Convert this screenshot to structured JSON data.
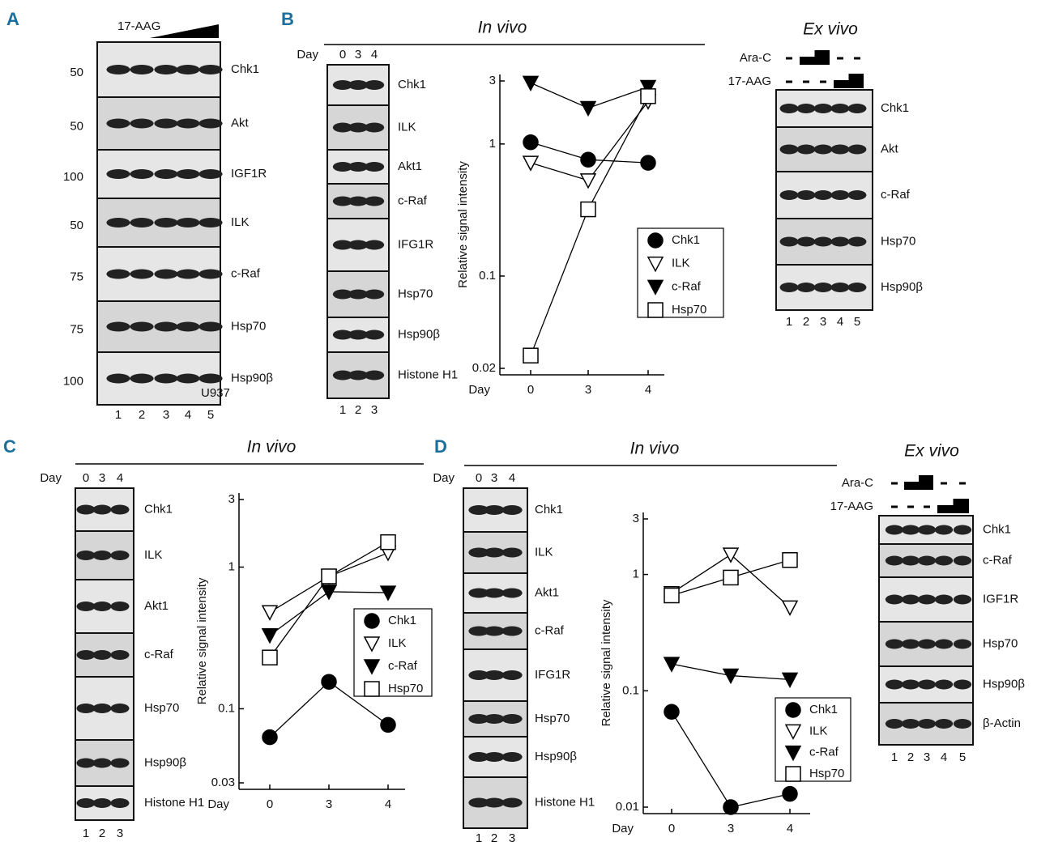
{
  "panels": {
    "A": {
      "label": "A",
      "treatment": "17-AAG",
      "cell_line": "U937",
      "rows": [
        {
          "name": "Chk1",
          "marker": "50"
        },
        {
          "name": "Akt",
          "marker": "50"
        },
        {
          "name": "IGF1R",
          "marker": "100"
        },
        {
          "name": "ILK",
          "marker": "50"
        },
        {
          "name": "c-Raf",
          "marker": "75"
        },
        {
          "name": "Hsp70",
          "marker": "75"
        },
        {
          "name": "Hsp90β",
          "marker": "100"
        }
      ],
      "lanes": [
        "1",
        "2",
        "3",
        "4",
        "5"
      ]
    },
    "B": {
      "label": "B",
      "title": "In vivo",
      "day_label": "Day",
      "days": [
        "0",
        "3",
        "4"
      ],
      "rows": [
        "Chk1",
        "ILK",
        "Akt1",
        "c-Raf",
        "IFG1R",
        "Hsp70",
        "Hsp90β",
        "Histone H1"
      ],
      "lanes": [
        "1",
        "2",
        "3"
      ]
    },
    "B_ex": {
      "title": "Ex vivo",
      "treatments": [
        "Ara-C",
        "17-AAG"
      ],
      "rows": [
        "Chk1",
        "Akt",
        "c-Raf",
        "Hsp70",
        "Hsp90β"
      ],
      "lanes": [
        "1",
        "2",
        "3",
        "4",
        "5"
      ]
    },
    "C": {
      "label": "C",
      "title": "In vivo",
      "day_label": "Day",
      "days": [
        "0",
        "3",
        "4"
      ],
      "rows": [
        "Chk1",
        "ILK",
        "Akt1",
        "c-Raf",
        "Hsp70",
        "Hsp90β",
        "Histone H1"
      ],
      "lanes": [
        "1",
        "2",
        "3"
      ]
    },
    "D": {
      "label": "D",
      "title": "In vivo",
      "day_label": "Day",
      "days": [
        "0",
        "3",
        "4"
      ],
      "rows": [
        "Chk1",
        "ILK",
        "Akt1",
        "c-Raf",
        "IFG1R",
        "Hsp70",
        "Hsp90β",
        "Histone H1"
      ],
      "lanes": [
        "1",
        "2",
        "3"
      ]
    },
    "D_ex": {
      "title": "Ex vivo",
      "treatments": [
        "Ara-C",
        "17-AAG"
      ],
      "rows": [
        "Chk1",
        "c-Raf",
        "IGF1R",
        "Hsp70",
        "Hsp90β",
        "β-Actin"
      ],
      "lanes": [
        "1",
        "2",
        "3",
        "4",
        "5"
      ]
    }
  },
  "chart_data": [
    {
      "type": "line",
      "yscale": "log",
      "y_label": "Relative signal intensity",
      "x_label": "Day",
      "categories": [
        "0",
        "3",
        "4"
      ],
      "ylim": [
        0.02,
        3
      ],
      "yticks": [
        0.02,
        0.1,
        1,
        3
      ],
      "series": [
        {
          "name": "Chk1",
          "color": "#000000",
          "marker": "circle",
          "filled": true,
          "values": [
            1.03,
            0.76,
            0.72
          ]
        },
        {
          "name": "ILK",
          "color": "#000000",
          "marker": "triangle-down",
          "filled": false,
          "values": [
            0.72,
            0.53,
            2.1
          ]
        },
        {
          "name": "c-Raf",
          "color": "#000000",
          "marker": "triangle-down",
          "filled": true,
          "values": [
            2.9,
            1.87,
            2.7
          ]
        },
        {
          "name": "Hsp70",
          "color": "#000000",
          "marker": "square",
          "filled": false,
          "values": [
            0.025,
            0.32,
            2.3
          ]
        }
      ]
    },
    {
      "type": "line",
      "yscale": "log",
      "y_label": "Relative signal intensity",
      "x_label": "Day",
      "categories": [
        "0",
        "3",
        "4"
      ],
      "ylim": [
        0.03,
        3
      ],
      "yticks": [
        0.03,
        0.1,
        1,
        3
      ],
      "series": [
        {
          "name": "Chk1",
          "color": "#000000",
          "marker": "circle",
          "filled": true,
          "values": [
            0.063,
            0.155,
            0.077
          ]
        },
        {
          "name": "ILK",
          "color": "#000000",
          "marker": "triangle-down",
          "filled": false,
          "values": [
            0.48,
            0.86,
            1.26
          ]
        },
        {
          "name": "c-Raf",
          "color": "#000000",
          "marker": "triangle-down",
          "filled": true,
          "values": [
            0.33,
            0.67,
            0.66
          ]
        },
        {
          "name": "Hsp70",
          "color": "#000000",
          "marker": "square",
          "filled": false,
          "values": [
            0.23,
            0.86,
            1.5
          ]
        }
      ]
    },
    {
      "type": "line",
      "yscale": "log",
      "y_label": "Relative signal intensity",
      "x_label": "Day",
      "categories": [
        "0",
        "3",
        "4"
      ],
      "ylim": [
        0.01,
        3
      ],
      "yticks": [
        0.01,
        0.1,
        1,
        3
      ],
      "series": [
        {
          "name": "Chk1",
          "color": "#000000",
          "marker": "circle",
          "filled": true,
          "values": [
            0.066,
            0.01,
            0.013
          ]
        },
        {
          "name": "ILK",
          "color": "#000000",
          "marker": "triangle-down",
          "filled": false,
          "values": [
            0.69,
            1.48,
            0.52
          ]
        },
        {
          "name": "c-Raf",
          "color": "#000000",
          "marker": "triangle-down",
          "filled": true,
          "values": [
            0.17,
            0.135,
            0.125
          ]
        },
        {
          "name": "Hsp70",
          "color": "#000000",
          "marker": "square",
          "filled": false,
          "values": [
            0.66,
            0.94,
            1.33
          ]
        }
      ]
    }
  ]
}
